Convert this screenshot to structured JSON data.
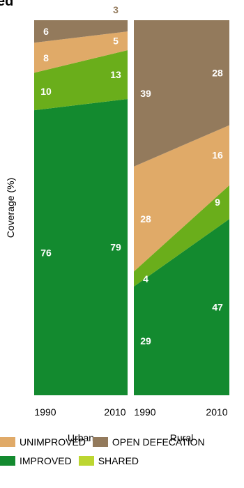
{
  "title": "ed",
  "chart_data": {
    "type": "area",
    "ylabel": "Coverage (%)",
    "ylim": [
      0,
      100
    ],
    "panels": [
      {
        "name": "Urban",
        "x": [
          "1990",
          "2010"
        ],
        "series": [
          {
            "name": "IMPROVED",
            "values": [
              76,
              79
            ]
          },
          {
            "name": "SHARED",
            "values": [
              10,
              13
            ]
          },
          {
            "name": "UNIMPROVED",
            "values": [
              8,
              5
            ]
          },
          {
            "name": "OPEN DEFECATION",
            "values": [
              6,
              3
            ]
          }
        ]
      },
      {
        "name": "Rural",
        "x": [
          "1990",
          "2010"
        ],
        "series": [
          {
            "name": "IMPROVED",
            "values": [
              29,
              47
            ]
          },
          {
            "name": "SHARED",
            "values": [
              4,
              9
            ]
          },
          {
            "name": "UNIMPROVED",
            "values": [
              28,
              16
            ]
          },
          {
            "name": "OPEN DEFECATION",
            "values": [
              39,
              28
            ]
          }
        ]
      }
    ]
  },
  "legend": [
    {
      "label": "UNIMPROVED",
      "color": "#e0aa68"
    },
    {
      "label": "OPEN DEFECATION",
      "color": "#937a5c"
    },
    {
      "label": "IMPROVED",
      "color": "#138a2f"
    },
    {
      "label": "SHARED",
      "color": "#bcd631"
    }
  ],
  "colors": {
    "IMPROVED": "#138a2f",
    "SHARED": "#6aae1b",
    "UNIMPROVED": "#e0aa68",
    "OPEN DEFECATION": "#937a5c"
  }
}
